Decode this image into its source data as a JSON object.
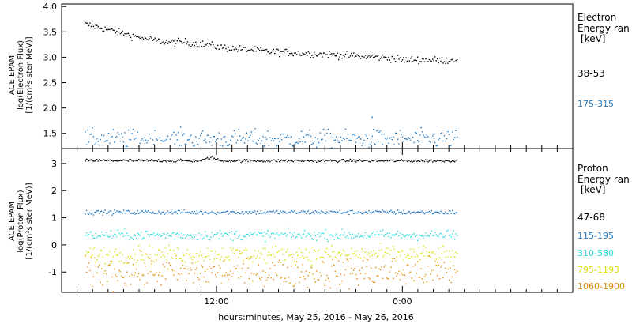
{
  "chart_data": [
    {
      "type": "scatter",
      "ylabel_lines": [
        "ACE EPAM",
        "log(Electron Flux)",
        "[1/(cm²s ster MeV)]"
      ],
      "ylim": [
        1.2,
        4.05
      ],
      "yticks": [
        1.5,
        2.0,
        2.5,
        3.0,
        3.5,
        4.0
      ],
      "ytick_labels": [
        "1.5",
        "2.0",
        "2.5",
        "3.0",
        "3.5",
        "4.0"
      ],
      "legend_title": [
        "Electron",
        "Energy ran",
        "[keV]"
      ],
      "series": [
        {
          "name": "38-53",
          "color": "#000000",
          "points": [
            [
              1.5,
              3.66
            ],
            [
              2.0,
              3.63
            ],
            [
              3.0,
              3.55
            ],
            [
              4.0,
              3.47
            ],
            [
              5.0,
              3.4
            ],
            [
              6.0,
              3.34
            ],
            [
              7.0,
              3.3
            ],
            [
              8.0,
              3.31
            ],
            [
              9.0,
              3.27
            ],
            [
              10.0,
              3.22
            ],
            [
              11.0,
              3.18
            ],
            [
              12.0,
              3.16
            ],
            [
              13.0,
              3.13
            ],
            [
              14.0,
              3.11
            ],
            [
              15.0,
              3.1
            ],
            [
              16.0,
              3.08
            ],
            [
              17.0,
              3.07
            ],
            [
              18.0,
              3.05
            ],
            [
              19.0,
              3.03
            ],
            [
              20.0,
              3.02
            ],
            [
              21.0,
              3.0
            ],
            [
              22.0,
              2.96
            ],
            [
              23.0,
              2.96
            ],
            [
              24.0,
              2.95
            ],
            [
              25.0,
              2.95
            ],
            [
              25.5,
              2.98
            ]
          ],
          "noise": 0.035
        },
        {
          "name": "175-315",
          "color": "#1f77c0",
          "points": [
            [
              1.5,
              1.4
            ],
            [
              25.5,
              1.4
            ]
          ],
          "noise": 0.09,
          "outliers": [
            [
              20.0,
              1.83
            ]
          ]
        }
      ]
    },
    {
      "type": "scatter",
      "ylabel_lines": [
        "ACE EPAM",
        "log(Proton Flux)",
        "[1/(cm²s ster MeV)]"
      ],
      "ylim": [
        -1.75,
        3.55
      ],
      "yticks": [
        -1,
        0,
        1,
        2,
        3
      ],
      "ytick_labels": [
        "-1",
        "0",
        "1",
        "2",
        "3"
      ],
      "legend_title": [
        "Proton",
        "Energy ran",
        "[keV]"
      ],
      "series": [
        {
          "name": "47-68",
          "color": "#000000",
          "points": [
            [
              1.5,
              3.13
            ],
            [
              9.0,
              3.12
            ],
            [
              9.6,
              3.25
            ],
            [
              10.2,
              3.12
            ],
            [
              25.5,
              3.12
            ]
          ],
          "noise": 0.025
        },
        {
          "name": "115-195",
          "color": "#1f77c0",
          "points": [
            [
              1.5,
              1.22
            ],
            [
              25.5,
              1.22
            ]
          ],
          "noise": 0.04
        },
        {
          "name": "310-580",
          "color": "#22dddd",
          "points": [
            [
              1.5,
              0.38
            ],
            [
              25.5,
              0.38
            ]
          ],
          "noise": 0.09
        },
        {
          "name": "795-1193",
          "color": "#dddd00",
          "points": [
            [
              1.5,
              -0.33
            ],
            [
              25.5,
              -0.33
            ]
          ],
          "noise": 0.16
        },
        {
          "name": "1060-1900",
          "color": "#e08a00",
          "points": [
            [
              1.5,
              -1.0
            ],
            [
              25.5,
              -1.0
            ]
          ],
          "noise": 0.28
        }
      ]
    }
  ],
  "x_axis": {
    "range_hours": [
      0,
      33
    ],
    "ticks": [
      {
        "hour": 10,
        "label": "12:00"
      },
      {
        "hour": 22,
        "label": "0:00"
      }
    ],
    "label": "hours:minutes, May 25, 2016 - May 26, 2016"
  }
}
